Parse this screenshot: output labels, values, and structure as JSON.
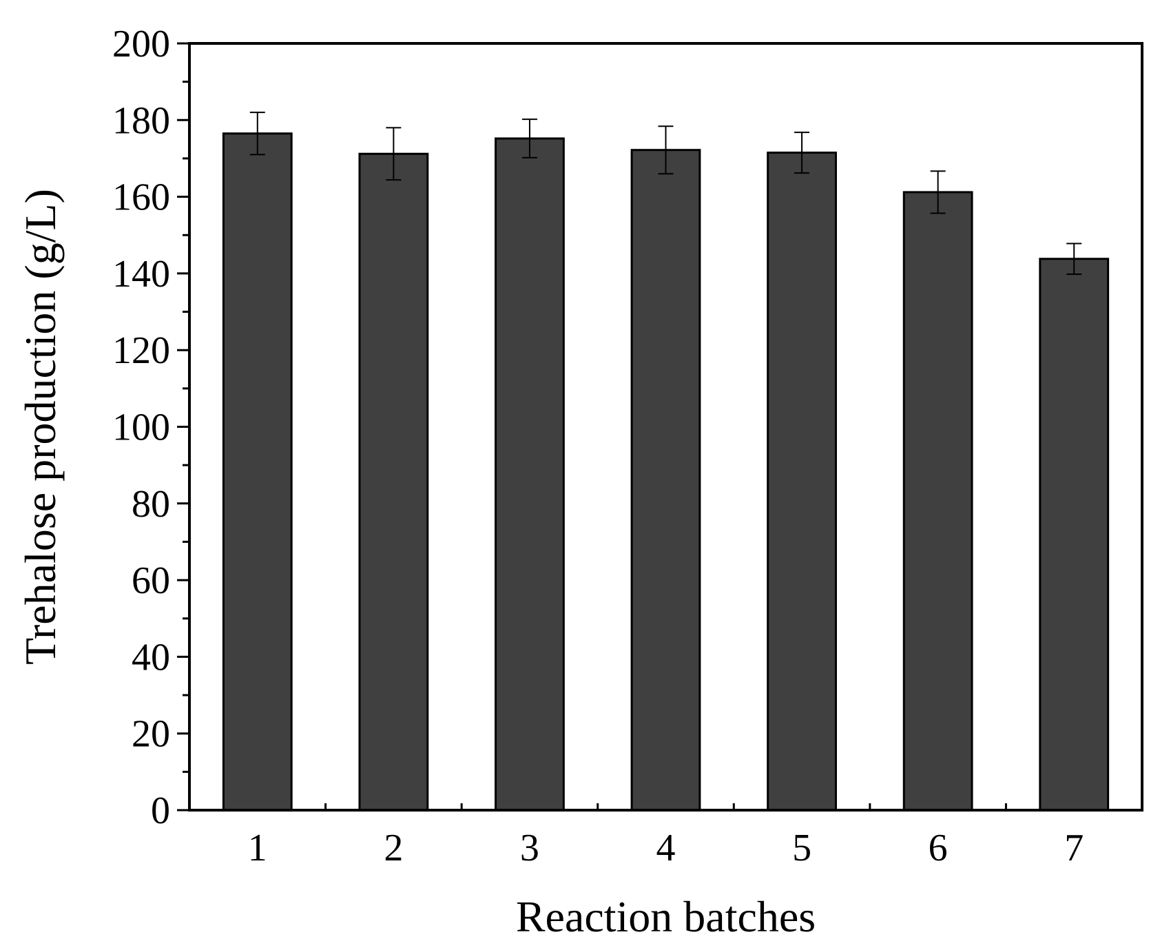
{
  "chart_data": {
    "type": "bar",
    "categories": [
      "1",
      "2",
      "3",
      "4",
      "5",
      "6",
      "7"
    ],
    "values": [
      176.5,
      171.2,
      175.2,
      172.2,
      171.5,
      161.2,
      143.8
    ],
    "errors": [
      5.5,
      6.8,
      5.0,
      6.2,
      5.3,
      5.5,
      4.0
    ],
    "xlabel": "Reaction batches",
    "ylabel": "Trehalose production (g/L)",
    "ylim": [
      0,
      200
    ],
    "yticks": [
      "0",
      "20",
      "40",
      "60",
      "80",
      "100",
      "120",
      "140",
      "160",
      "180",
      "200"
    ],
    "grid": false,
    "bar_color": "#404040"
  }
}
